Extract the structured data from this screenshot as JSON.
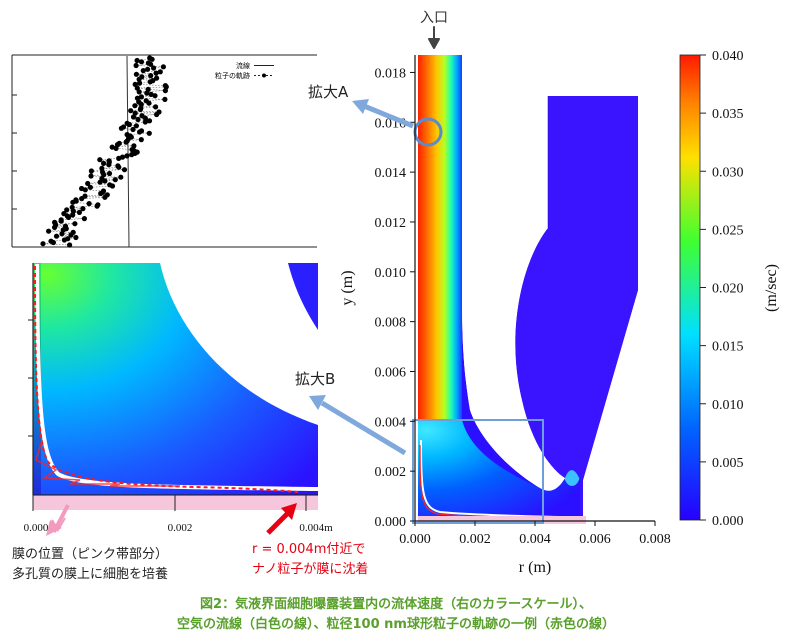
{
  "colors": {
    "cap_green": "#5aa02c",
    "pink": "#f6c6dc",
    "red_arrow": "#e60012",
    "pink_arrow": "#f29bbf",
    "blue_arrow": "#7fa9dc",
    "circle": "#5b8cc8"
  },
  "labels": {
    "inlet": "入口",
    "zoom_a": "拡大A",
    "zoom_b": "拡大B",
    "membrane_l1": "膜の位置（ピンク帯部分）",
    "membrane_l2": "多孔質の膜上に細胞を培養",
    "red_l1": "r = 0.004m付近で",
    "red_l2": "ナノ粒子が膜に沈着"
  },
  "caption": {
    "line1": "図2：気液界面細胞曝露装置内の流体速度（右のカラースケール）、",
    "line2": "空気の流線（白色の線）、粒径100 nm球形粒子の軌跡の一例（赤色の線）"
  },
  "main_plot": {
    "xlabel": "r (m)",
    "ylabel": "y (m)",
    "xticks": [
      "0.000",
      "0.002",
      "0.004",
      "0.006",
      "0.008"
    ],
    "yticks": [
      "0.000",
      "0.002",
      "0.004",
      "0.006",
      "0.008",
      "0.010",
      "0.012",
      "0.014",
      "0.016",
      "0.018"
    ]
  },
  "colorbar": {
    "label": "(m/sec)",
    "ticks": [
      "0.040",
      "0.035",
      "0.030",
      "0.025",
      "0.020",
      "0.015",
      "0.010",
      "0.005",
      "0.000"
    ]
  },
  "inset_a": {
    "legend_streamline": "流線",
    "legend_particle": "粒子の軌跡"
  },
  "inset_b": {
    "xticks": [
      "0.000",
      "0.002",
      "0.004m"
    ]
  }
}
